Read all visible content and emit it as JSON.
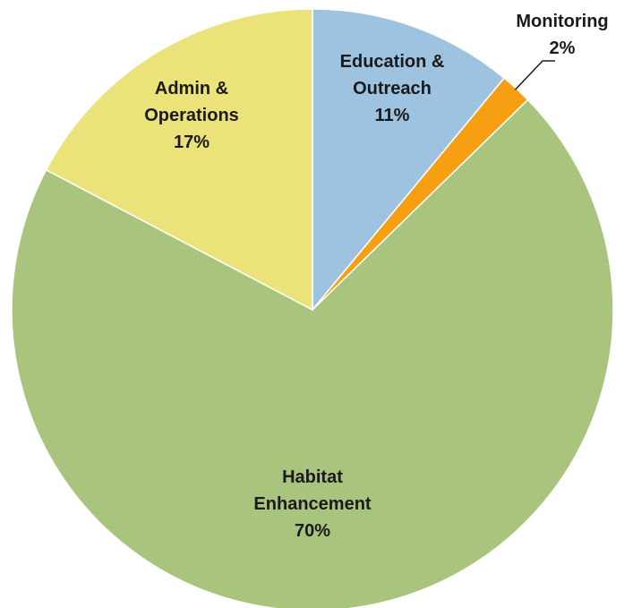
{
  "chart_data": {
    "type": "pie",
    "title": "",
    "slices": [
      {
        "label": [
          "Education &",
          "Outreach"
        ],
        "pct_text": "11%",
        "value": 11,
        "color": "#9dc3e0"
      },
      {
        "label": [
          "Monitoring"
        ],
        "pct_text": "2%",
        "value": 1.7,
        "color": "#f79f12"
      },
      {
        "label": [
          "Habitat",
          "Enhancement"
        ],
        "pct_text": "70%",
        "value": 70,
        "color": "#a8c47d"
      },
      {
        "label": [
          "Admin &",
          "Operations"
        ],
        "pct_text": "17%",
        "value": 17.3,
        "color": "#ece27a"
      }
    ],
    "start": "12 o'clock",
    "direction": "clockwise",
    "legend": "none",
    "label_style": "bold, inside slices; Monitoring label outside with leader line"
  }
}
